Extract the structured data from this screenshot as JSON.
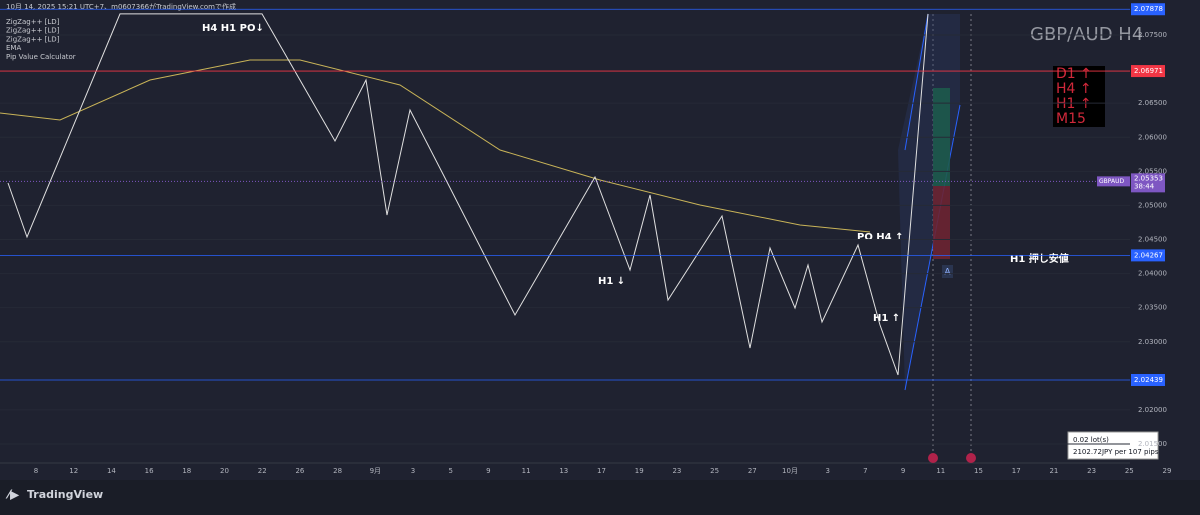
{
  "header": {
    "caption": "10月 14, 2025 15:21 UTC+7、m0607366がTradingView.comで作成",
    "indicators": [
      "ZigZag++ [LD]",
      "ZigZag++ [LD]",
      "ZigZag++ [LD]",
      "EMA",
      "Pip Value Calculator"
    ]
  },
  "symbol": "GBP/AUD H4",
  "timeframes": [
    "D1 ↑",
    "H4 ↑",
    "H1 ↑",
    "M15"
  ],
  "annotations": [
    "H4 H1 PO↓",
    "PO H4 ↑",
    "H1 ↓",
    "H1 ↑",
    "H1 押し安値",
    "A"
  ],
  "price_axis": {
    "ticks": [
      {
        "value": 2.075,
        "label": "2.07500"
      },
      {
        "value": 2.065,
        "label": "2.06500"
      },
      {
        "value": 2.06,
        "label": "2.06000"
      },
      {
        "value": 2.055,
        "label": "2.05500"
      },
      {
        "value": 2.05,
        "label": "2.05000"
      },
      {
        "value": 2.045,
        "label": "2.04500"
      },
      {
        "value": 2.04,
        "label": "2.04000"
      },
      {
        "value": 2.035,
        "label": "2.03500"
      },
      {
        "value": 2.03,
        "label": "2.03000"
      },
      {
        "value": 2.02,
        "label": "2.02000"
      },
      {
        "value": 2.015,
        "label": "2.01500"
      }
    ],
    "levels": [
      {
        "value": 2.07878,
        "label": "2.07878",
        "color": "#2962ff"
      },
      {
        "value": 2.06971,
        "label": "2.06971",
        "color": "#f23645"
      },
      {
        "value": 2.04267,
        "label": "2.04267",
        "color": "#2962ff"
      },
      {
        "value": 2.02439,
        "label": "2.02439",
        "color": "#2962ff"
      }
    ],
    "current": {
      "symbol": "GBPAUD",
      "value": 2.05353,
      "label": "2.05353",
      "countdown": "38:44",
      "color": "#7e57c2"
    }
  },
  "time_axis": [
    "8",
    "12",
    "14",
    "16",
    "18",
    "20",
    "22",
    "26",
    "28",
    "9月",
    "3",
    "5",
    "9",
    "11",
    "13",
    "17",
    "19",
    "23",
    "25",
    "27",
    "10月",
    "3",
    "7",
    "9",
    "11",
    "15",
    "17",
    "21",
    "23",
    "25",
    "29"
  ],
  "zigzag": {
    "color": "#e0e0e0",
    "values": [
      2.05329,
      2.04536,
      2.0781,
      2.0781,
      2.05945,
      2.0684,
      2.04859,
      2.064,
      2.05402,
      2.03392,
      2.05417,
      2.04052,
      2.05153,
      2.03612,
      2.04845,
      2.02908,
      2.04375,
      2.03495,
      2.04126,
      2.03289,
      2.04419,
      2.03245,
      2.02512,
      2.0781
    ]
  },
  "ema": {
    "name": "EMA",
    "color": "#c9b458",
    "values": [
      2.06356,
      2.06253,
      2.0684,
      2.07133,
      2.07133,
      2.06767,
      2.05813,
      2.05373,
      2.05006,
      2.04712,
      2.0461
    ]
  },
  "pip_calculator": {
    "lots": "0.02 lot(s)",
    "value": "2102.72JPY per 107 pips"
  },
  "footer": {
    "brand": "TradingView"
  }
}
